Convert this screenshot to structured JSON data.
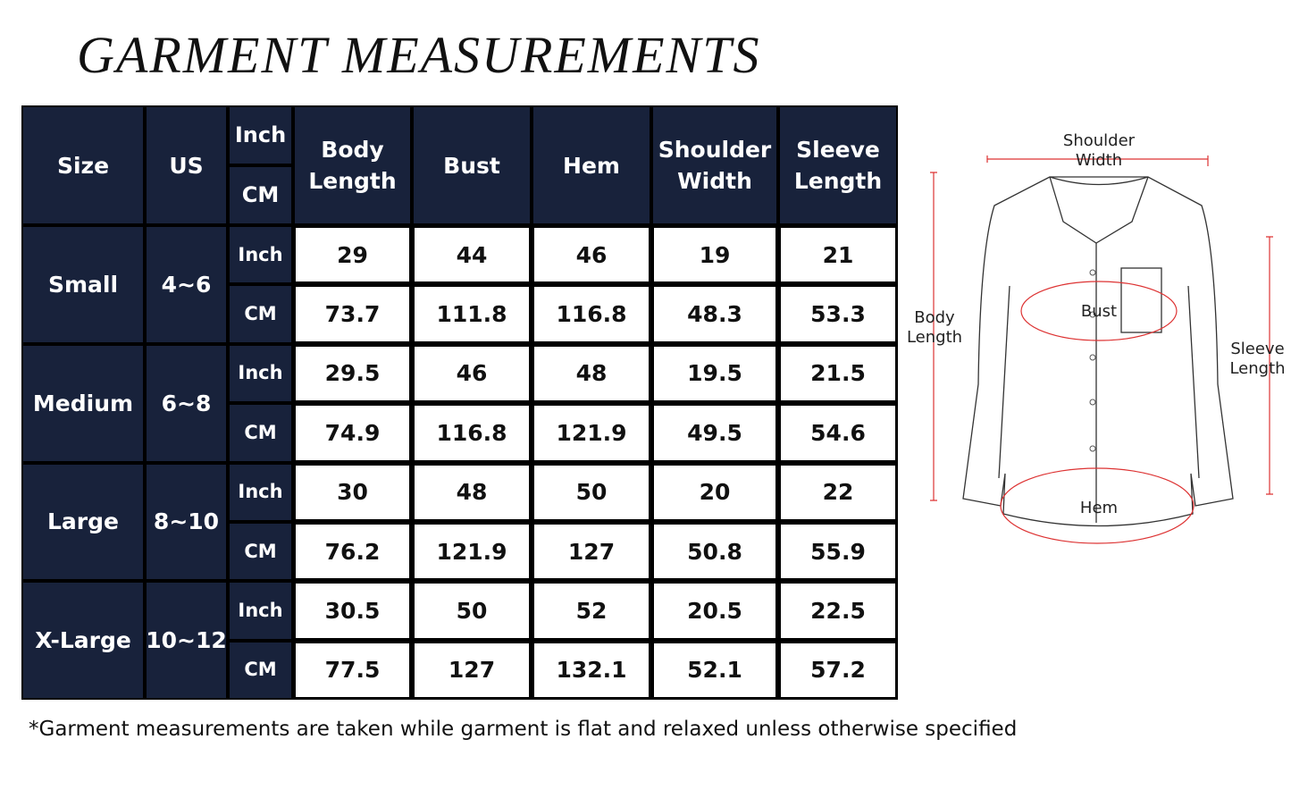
{
  "header": {
    "title": "GARMENT MEASUREMENTS"
  },
  "table": {
    "headers": [
      "Size",
      "US",
      [
        "Inch",
        "CM"
      ],
      "Body Length",
      "Bust",
      "Hem",
      "Shoulder Width",
      "Sleeve Length"
    ],
    "groups": [
      {
        "size": "Small",
        "us": "4~6",
        "rows": [
          {
            "unit": "Inch",
            "values": [
              29,
              44,
              46,
              19,
              21
            ]
          },
          {
            "unit": "CM",
            "values": [
              73.7,
              111.8,
              116.8,
              48.3,
              53.3
            ]
          }
        ]
      },
      {
        "size": "Medium",
        "us": "6~8",
        "rows": [
          {
            "unit": "Inch",
            "values": [
              29.5,
              46,
              48,
              19.5,
              21.5
            ]
          },
          {
            "unit": "CM",
            "values": [
              74.9,
              116.8,
              121.9,
              49.5,
              54.6
            ]
          }
        ]
      },
      {
        "size": "Large",
        "us": "8~10",
        "rows": [
          {
            "unit": "Inch",
            "values": [
              30,
              48,
              50,
              20,
              22
            ]
          },
          {
            "unit": "CM",
            "values": [
              76.2,
              121.9,
              127,
              50.8,
              55.9
            ]
          }
        ]
      },
      {
        "size": "X-Large",
        "us": "10~12",
        "rows": [
          {
            "unit": "Inch",
            "values": [
              30.5,
              50,
              52,
              20.5,
              22.5
            ]
          },
          {
            "unit": "CM",
            "values": [
              77.5,
              127,
              132.1,
              52.1,
              57.2
            ]
          }
        ]
      }
    ]
  },
  "diagram": {
    "shoulder": "Shoulder Width",
    "body": "Body Length",
    "bust": "Bust",
    "sleeve": "Sleeve Length",
    "hem": "Hem"
  },
  "footnote": "*Garment measurements are taken while garment is flat and relaxed unless otherwise specified"
}
